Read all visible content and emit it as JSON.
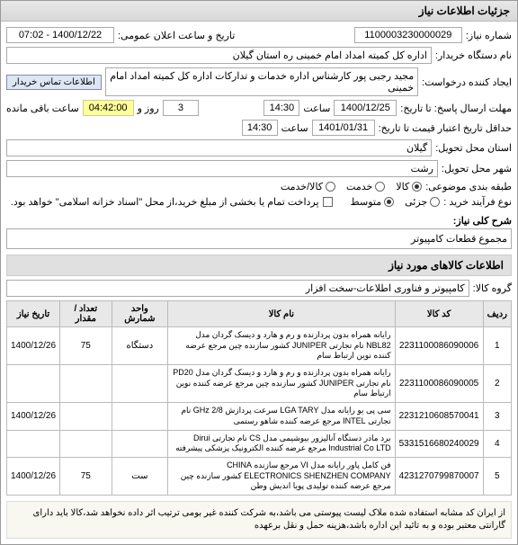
{
  "window": {
    "title": "جزئیات اطلاعات نیاز"
  },
  "fields": {
    "need_no_label": "شماره نیاز:",
    "need_no": "1100003230000029",
    "announce_label": "تاریخ و ساعت اعلان عمومی:",
    "announce": "1400/12/22 - 07:02",
    "buyer_label": "نام دستگاه خریدار:",
    "buyer": "اداره کل کمیته امداد امام خمینی ره استان گیلان",
    "requester_label": "ایجاد کننده درخواست:",
    "requester": "مجید رجبی پور کارشناس اداره خدمات و تدارکات اداره کل کمیته امداد امام خمینی",
    "contact_btn": "اطلاعات تماس خریدار",
    "deadline_label": "مهلت ارسال پاسخ: تا تاریخ:",
    "deadline_date": "1400/12/25",
    "time_label": "ساعت",
    "deadline_time": "14:30",
    "days_label": "روز و",
    "days": "3",
    "remaining": "04:42:00",
    "remaining_label": "ساعت باقی مانده",
    "validity_label": "حداقل تاریخ اعتبار قیمت تا تاریخ:",
    "validity_date": "1401/01/31",
    "validity_time": "14:30",
    "province_label": "استان محل تحویل:",
    "province": "گیلان",
    "city_label": "شهر محل تحویل:",
    "city": "رشت",
    "category_label": "طبقه بندی موضوعی:",
    "cat_goods": "کالا",
    "cat_service": "خدمت",
    "cat_both": "کالا/خدمت",
    "process_label": "نوع فرآیند خرید :",
    "proc_small": "جزئی",
    "proc_medium": "متوسط",
    "payment_note": "پرداخت تمام یا بخشی از مبلغ خرید،از محل \"اسناد خزانه اسلامی\" خواهد بود.",
    "desc_label": "شرح کلی نیاز:",
    "desc": "مجموع قطعات کامپیوتر",
    "goods_section": "اطلاعات کالاهای مورد نیاز",
    "group_label": "گروه کالا:",
    "group": "کامپیوتر و فناوری اطلاعات-سخت افزار"
  },
  "table": {
    "headers": {
      "row": "ردیف",
      "code": "کد کالا",
      "name": "نام کالا",
      "unit": "واحد شمارش",
      "qty": "تعداد / مقدار",
      "date": "تاریخ نیاز"
    },
    "rows": [
      {
        "n": "1",
        "code": "2231100086090006",
        "name": "رایانه همراه بدون پردازنده و رم و هارد و دیسک گردان مدل NBL82 نام تجارتی JUNIPER کشور سازنده چین مرجع عرضه کننده نوین ارتباط سام",
        "unit": "دستگاه",
        "qty": "75",
        "date": "1400/12/26"
      },
      {
        "n": "2",
        "code": "2231100086090005",
        "name": "رایانه همراه بدون پردازنده و رم و هارد و دیسک گردان مدل PD20 نام تجارتی JUNIPER کشور سازنده چین مرجع عرضه کننده نوین ارتباط سام",
        "unit": "",
        "qty": "",
        "date": ""
      },
      {
        "n": "3",
        "code": "2231210608570041",
        "name": "سی پی یو رایانه مدل LGA TARY سرعت پردازش GHz 2/8 نام تجارتی INTEL مرجع عرضه کننده شاهو رستمی",
        "unit": "",
        "qty": "",
        "date": "1400/12/26"
      },
      {
        "n": "4",
        "code": "5331516680240029",
        "name": "برد مادر دستگاه آنالیزور بیوشیمی مدل CS نام تجارتی Dirui Industrial Co LTD مرجع عرضه کننده الکترونیک پزشکی پیشرفته",
        "unit": "",
        "qty": "",
        "date": ""
      },
      {
        "n": "5",
        "code": "4231270799870007",
        "name": "فن کامل پاور رایانه مدل VI مرجع سازنده CHINA ELECTRONICS SHENZHEN COMPANY کشور سازنده چین مرجع عرضه کننده تولیدی پویا اندیش وطن",
        "unit": "ست",
        "qty": "75",
        "date": "1400/12/26"
      }
    ]
  },
  "footer": "از ایران کد مشابه استفاده شده ملاک لیست پیوستی می باشد،به شرکت کننده غیر بومی ترتیب اثر داده نخواهد شد،کالا باید دارای گارانتی معتبر بوده و به تائید این اداره باشد،هزینه حمل و نقل برعهده"
}
